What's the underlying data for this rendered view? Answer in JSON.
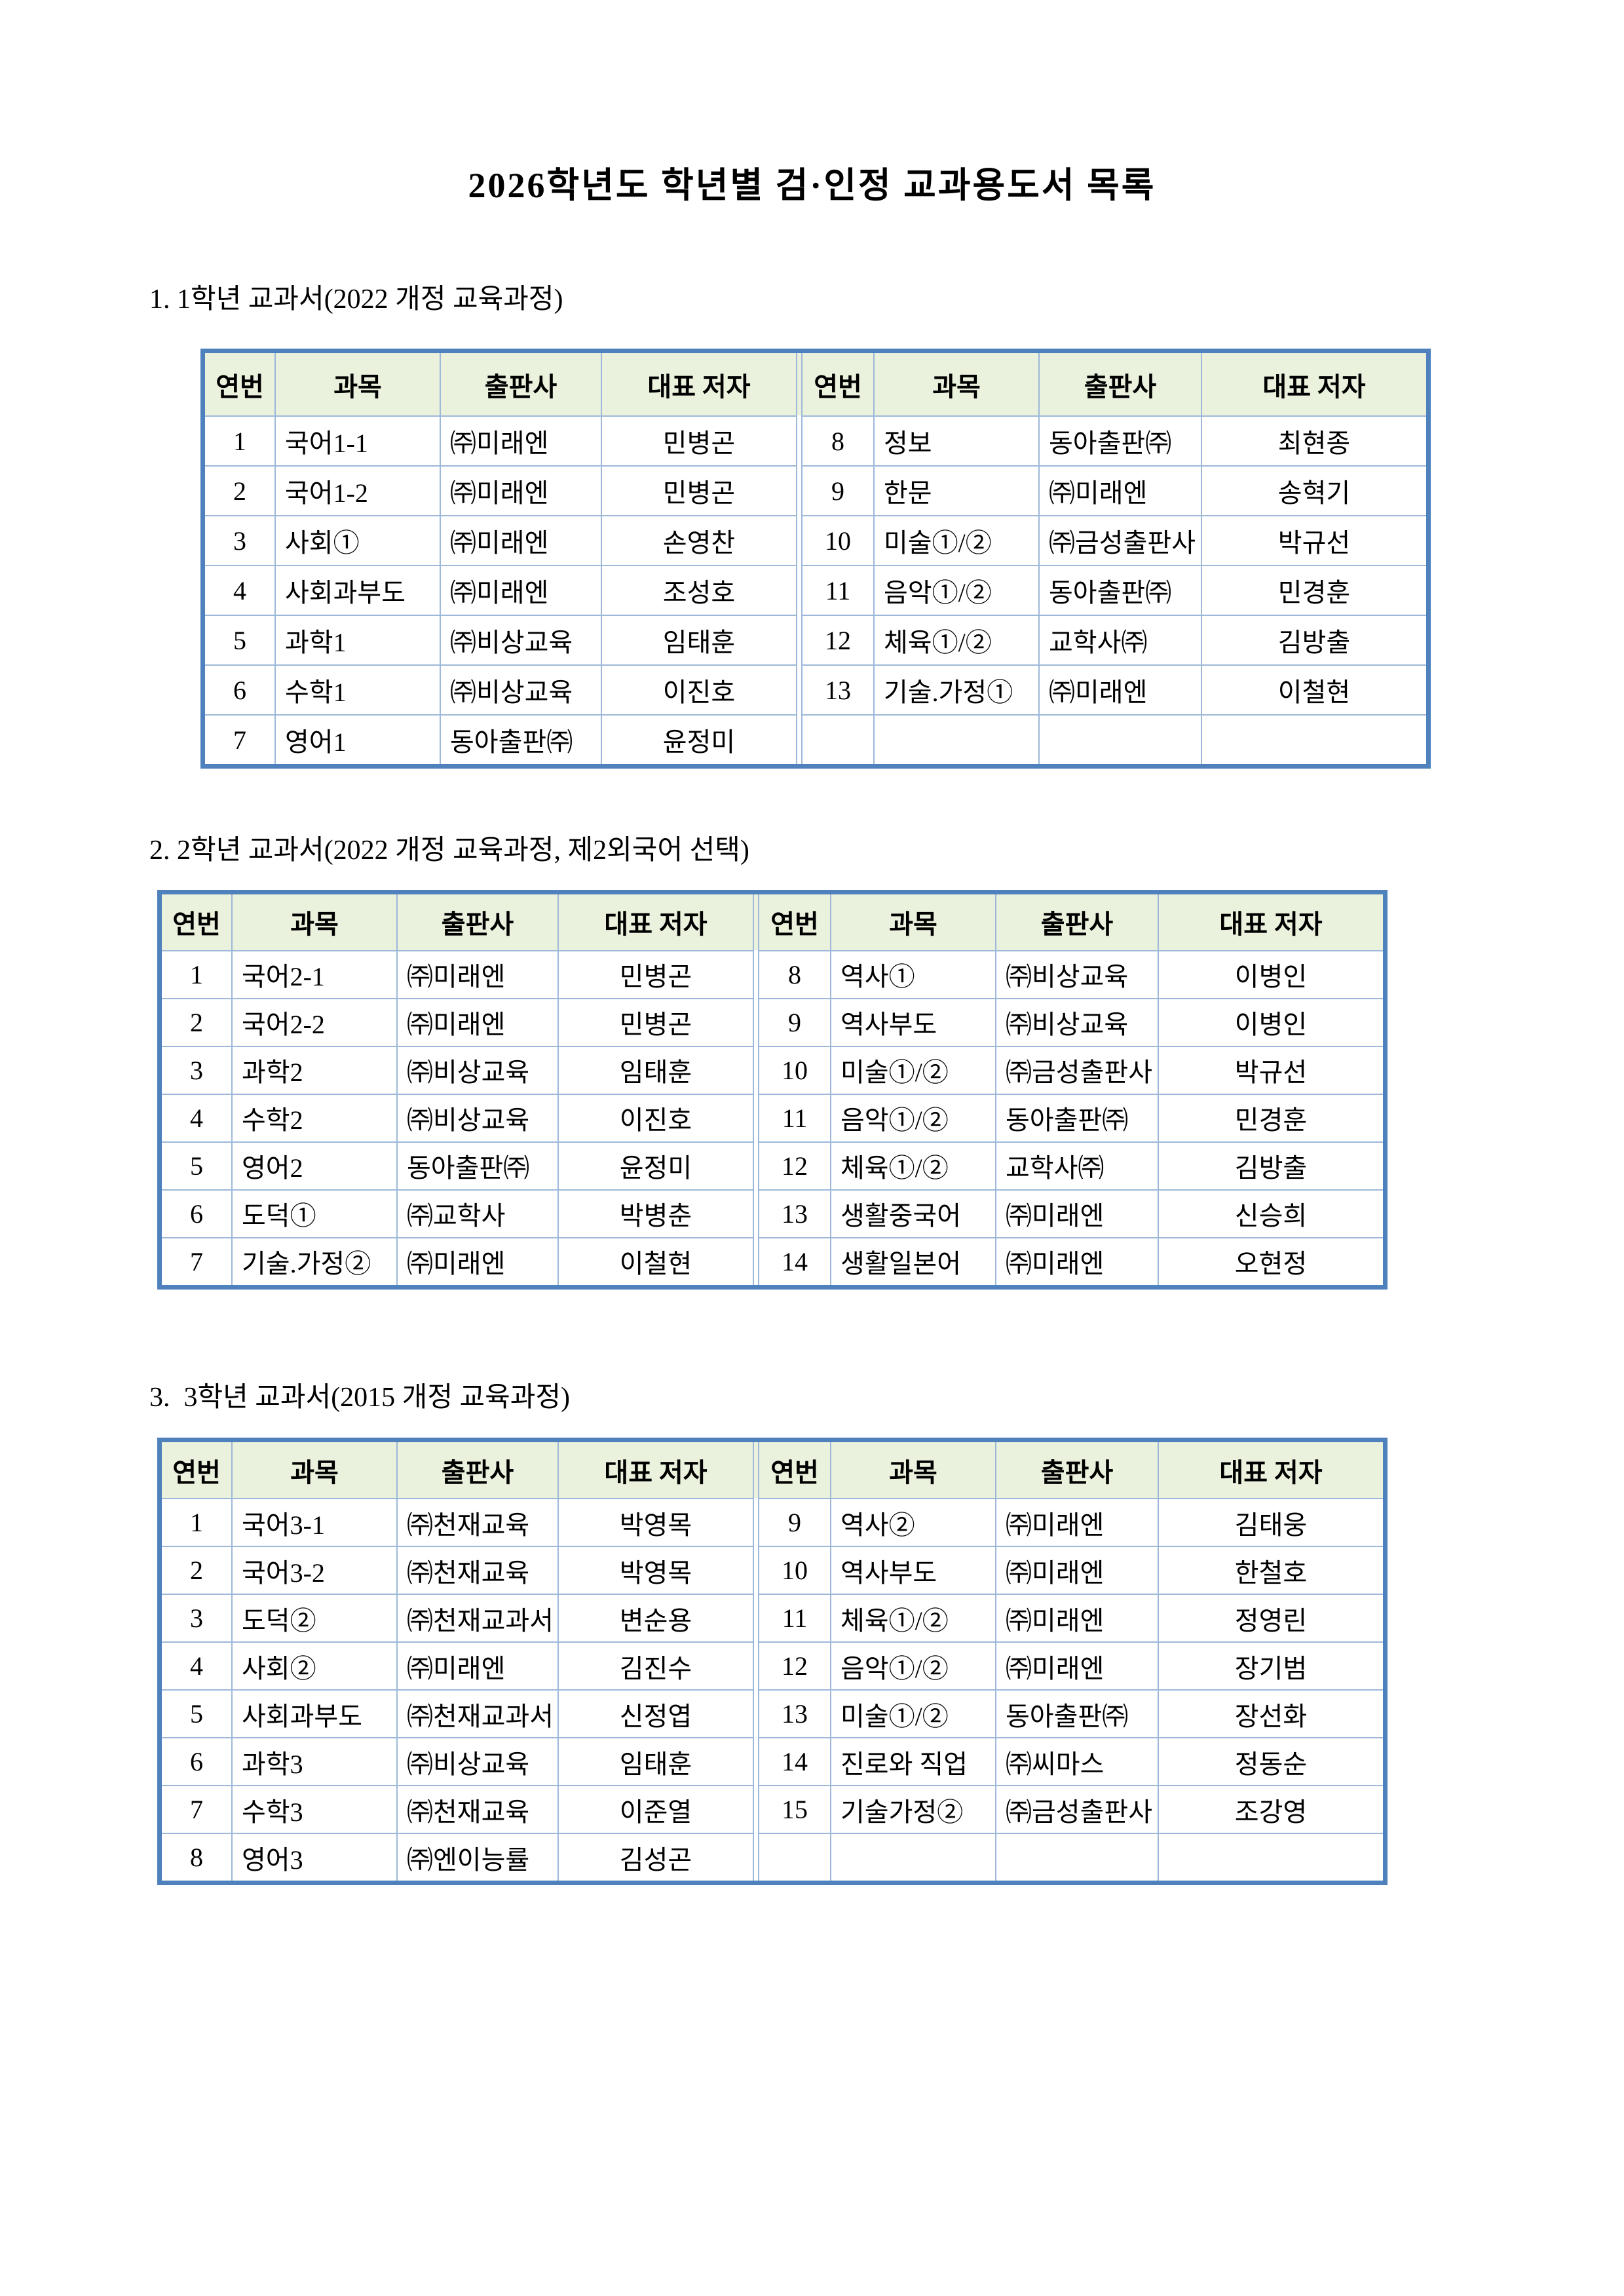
{
  "page": {
    "title": "2026학년도 학년별 검·인정 교과용도서 목록"
  },
  "colors": {
    "header_bg": "#eaf1dd",
    "table_border": "#4f81bd",
    "table_line": "#9db8d9"
  },
  "sections": [
    {
      "heading": "1. 1학년 교과서(2022 개정 교육과정)",
      "columns": [
        "연번",
        "과목",
        "출판사",
        "대표 저자"
      ],
      "rows_left": [
        [
          "1",
          "국어1-1",
          "㈜미래엔",
          "민병곤"
        ],
        [
          "2",
          "국어1-2",
          "㈜미래엔",
          "민병곤"
        ],
        [
          "3",
          "사회①",
          "㈜미래엔",
          "손영찬"
        ],
        [
          "4",
          "사회과부도",
          "㈜미래엔",
          "조성호"
        ],
        [
          "5",
          "과학1",
          "㈜비상교육",
          "임태훈"
        ],
        [
          "6",
          "수학1",
          "㈜비상교육",
          "이진호"
        ],
        [
          "7",
          "영어1",
          "동아출판㈜",
          "윤정미"
        ]
      ],
      "rows_right": [
        [
          "8",
          "정보",
          "동아출판㈜",
          "최현종"
        ],
        [
          "9",
          "한문",
          "㈜미래엔",
          "송혁기"
        ],
        [
          "10",
          "미술①/②",
          "㈜금성출판사",
          "박규선"
        ],
        [
          "11",
          "음악①/②",
          "동아출판㈜",
          "민경훈"
        ],
        [
          "12",
          "체육①/②",
          "교학사㈜",
          "김방출"
        ],
        [
          "13",
          "기술.가정①",
          "㈜미래엔",
          "이철현"
        ]
      ]
    },
    {
      "heading": "2. 2학년 교과서(2022 개정 교육과정, 제2외국어 선택)",
      "columns": [
        "연번",
        "과목",
        "출판사",
        "대표 저자"
      ],
      "rows_left": [
        [
          "1",
          "국어2-1",
          "㈜미래엔",
          "민병곤"
        ],
        [
          "2",
          "국어2-2",
          "㈜미래엔",
          "민병곤"
        ],
        [
          "3",
          "과학2",
          "㈜비상교육",
          "임태훈"
        ],
        [
          "4",
          "수학2",
          "㈜비상교육",
          "이진호"
        ],
        [
          "5",
          "영어2",
          "동아출판㈜",
          "윤정미"
        ],
        [
          "6",
          "도덕①",
          "㈜교학사",
          "박병춘"
        ],
        [
          "7",
          "기술.가정②",
          "㈜미래엔",
          "이철현"
        ]
      ],
      "rows_right": [
        [
          "8",
          "역사①",
          "㈜비상교육",
          "이병인"
        ],
        [
          "9",
          "역사부도",
          "㈜비상교육",
          "이병인"
        ],
        [
          "10",
          "미술①/②",
          "㈜금성출판사",
          "박규선"
        ],
        [
          "11",
          "음악①/②",
          "동아출판㈜",
          "민경훈"
        ],
        [
          "12",
          "체육①/②",
          "교학사㈜",
          "김방출"
        ],
        [
          "13",
          "생활중국어",
          "㈜미래엔",
          "신승희"
        ],
        [
          "14",
          "생활일본어",
          "㈜미래엔",
          "오현정"
        ]
      ]
    },
    {
      "heading": "3.  3학년 교과서(2015 개정 교육과정)",
      "columns": [
        "연번",
        "과목",
        "출판사",
        "대표 저자"
      ],
      "rows_left": [
        [
          "1",
          "국어3-1",
          "㈜천재교육",
          "박영목"
        ],
        [
          "2",
          "국어3-2",
          "㈜천재교육",
          "박영목"
        ],
        [
          "3",
          "도덕②",
          "㈜천재교과서",
          "변순용"
        ],
        [
          "4",
          "사회②",
          "㈜미래엔",
          "김진수"
        ],
        [
          "5",
          "사회과부도",
          "㈜천재교과서",
          "신정엽"
        ],
        [
          "6",
          "과학3",
          "㈜비상교육",
          "임태훈"
        ],
        [
          "7",
          "수학3",
          "㈜천재교육",
          "이준열"
        ],
        [
          "8",
          "영어3",
          "㈜엔이능률",
          "김성곤"
        ]
      ],
      "rows_right": [
        [
          "9",
          "역사②",
          "㈜미래엔",
          "김태웅"
        ],
        [
          "10",
          "역사부도",
          "㈜미래엔",
          "한철호"
        ],
        [
          "11",
          "체육①/②",
          "㈜미래엔",
          "정영린"
        ],
        [
          "12",
          "음악①/②",
          "㈜미래엔",
          "장기범"
        ],
        [
          "13",
          "미술①/②",
          "동아출판㈜",
          "장선화"
        ],
        [
          "14",
          "진로와 직업",
          "㈜씨마스",
          "정동순"
        ],
        [
          "15",
          "기술가정②",
          "㈜금성출판사",
          "조강영"
        ]
      ]
    }
  ]
}
